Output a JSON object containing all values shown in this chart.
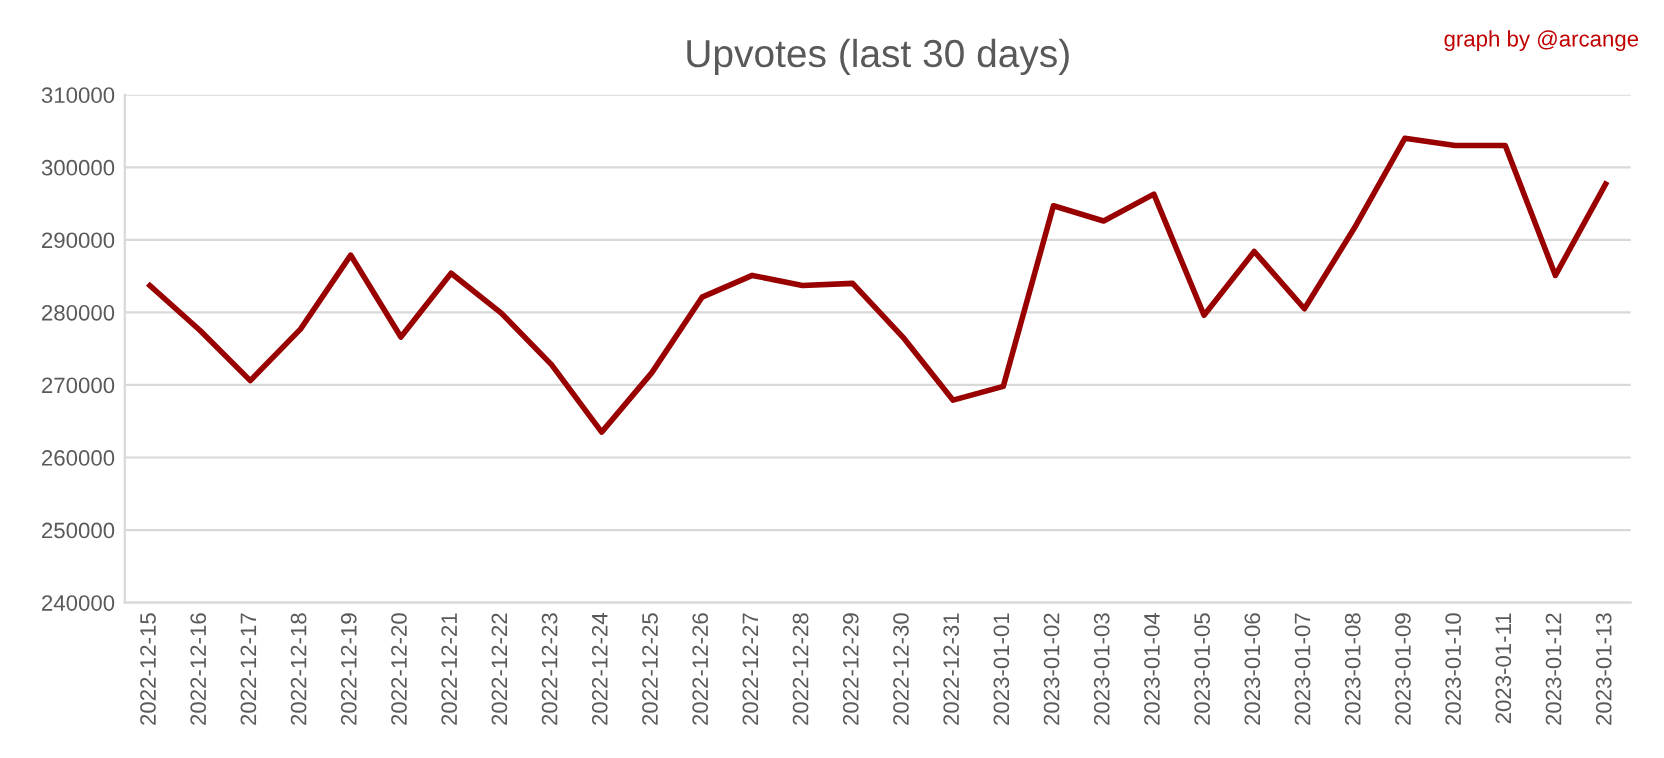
{
  "chart_data": {
    "type": "line",
    "title": "Upvotes (last 30 days)",
    "annotations": [
      "graph by @arcange"
    ],
    "categories": [
      "2022-12-15",
      "2022-12-16",
      "2022-12-17",
      "2022-12-18",
      "2022-12-19",
      "2022-12-20",
      "2022-12-21",
      "2022-12-22",
      "2022-12-23",
      "2022-12-24",
      "2022-12-25",
      "2022-12-26",
      "2022-12-27",
      "2022-12-28",
      "2022-12-29",
      "2022-12-30",
      "2022-12-31",
      "2023-01-01",
      "2023-01-02",
      "2023-01-03",
      "2023-01-04",
      "2023-01-05",
      "2023-01-06",
      "2023-01-07",
      "2023-01-08",
      "2023-01-09",
      "2023-01-10",
      "2023-01-11",
      "2023-01-12",
      "2023-01-13"
    ],
    "series": [
      {
        "color": "#990000",
        "values": [
          283700,
          277500,
          270600,
          277700,
          287900,
          276600,
          285400,
          279900,
          272800,
          263500,
          271700,
          282100,
          285100,
          283700,
          284000,
          276600,
          267900,
          269800,
          294700,
          292600,
          296300,
          279600,
          288400,
          280500,
          291700,
          304000,
          303000,
          303000,
          285100,
          297700
        ]
      }
    ],
    "ylim": [
      240000,
      310000
    ],
    "yticks": [
      240000,
      250000,
      260000,
      270000,
      280000,
      290000,
      300000,
      310000
    ],
    "grid": "y",
    "legend": false,
    "marker": "none",
    "line_style": "solid"
  }
}
